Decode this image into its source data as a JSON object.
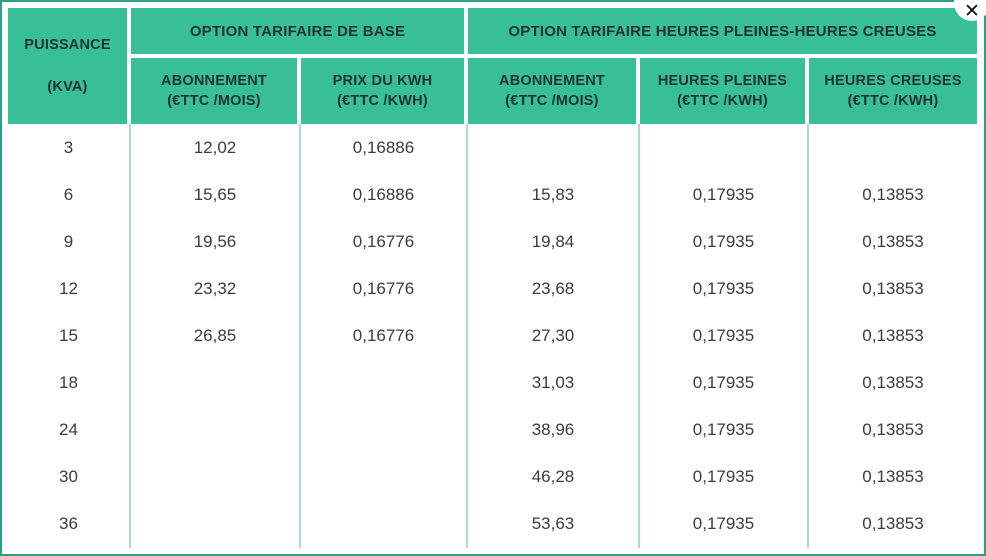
{
  "panel": {
    "close_icon": "✕"
  },
  "colors": {
    "header_bg": "#38bf97",
    "outer_border": "#2aa085",
    "grid_line": "#a9ddcb",
    "header_text": "#1e352e",
    "body_text": "#3c3c3c"
  },
  "table": {
    "puissance_header": {
      "line1": "PUISSANCE",
      "line2": "(KVA)"
    },
    "groups": [
      {
        "label": "OPTION TARIFAIRE DE BASE"
      },
      {
        "label": "OPTION TARIFAIRE HEURES PLEINES-HEURES CREUSES"
      }
    ],
    "subheaders": [
      {
        "line1": "ABONNEMENT",
        "line2": "(€TTC /MOIS)"
      },
      {
        "line1": "PRIX DU KWH",
        "line2": "(€TTC /KWH)"
      },
      {
        "line1": "ABONNEMENT",
        "line2": "(€TTC /MOIS)"
      },
      {
        "line1": "HEURES PLEINES",
        "line2": "(€TTC /KWH)"
      },
      {
        "line1": "HEURES CREUSES",
        "line2": "(€TTC /KWH)"
      }
    ],
    "rows": [
      [
        "3",
        "12,02",
        "0,16886",
        "",
        "",
        ""
      ],
      [
        "6",
        "15,65",
        "0,16886",
        "15,83",
        "0,17935",
        "0,13853"
      ],
      [
        "9",
        "19,56",
        "0,16776",
        "19,84",
        "0,17935",
        "0,13853"
      ],
      [
        "12",
        "23,32",
        "0,16776",
        "23,68",
        "0,17935",
        "0,13853"
      ],
      [
        "15",
        "26,85",
        "0,16776",
        "27,30",
        "0,17935",
        "0,13853"
      ],
      [
        "18",
        "",
        "",
        "31,03",
        "0,17935",
        "0,13853"
      ],
      [
        "24",
        "",
        "",
        "38,96",
        "0,17935",
        "0,13853"
      ],
      [
        "30",
        "",
        "",
        "46,28",
        "0,17935",
        "0,13853"
      ],
      [
        "36",
        "",
        "",
        "53,63",
        "0,17935",
        "0,13853"
      ]
    ]
  }
}
